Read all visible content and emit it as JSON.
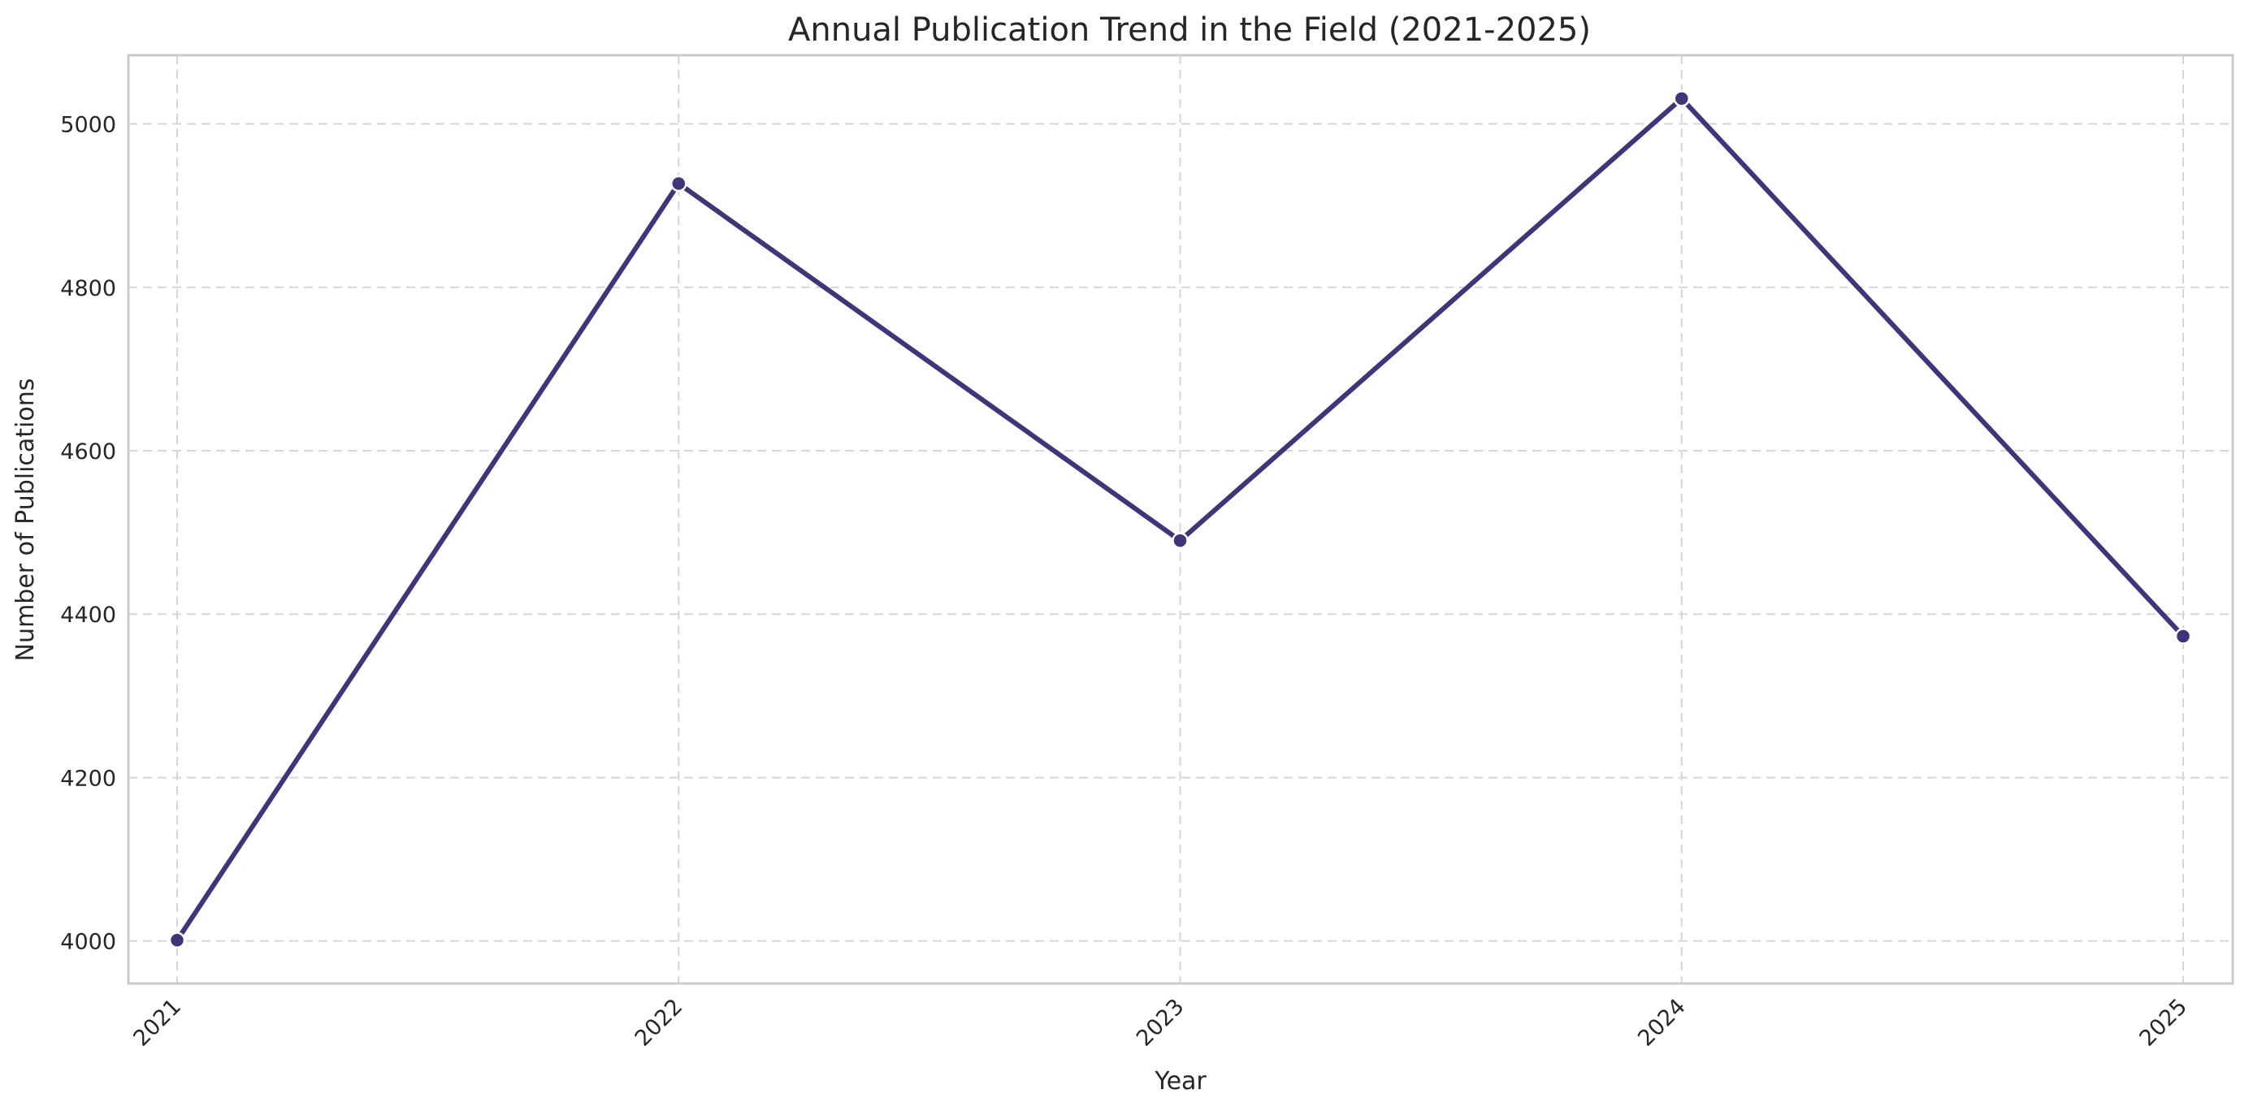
{
  "chart_data": {
    "type": "line",
    "title": "Annual Publication Trend in the Field (2021-2025)",
    "xlabel": "Year",
    "ylabel": "Number of Publications",
    "categories": [
      "2021",
      "2022",
      "2023",
      "2024",
      "2025"
    ],
    "series": [
      {
        "values": [
          4001,
          4927,
          4490,
          5031,
          4373
        ]
      }
    ],
    "yticks": [
      4000,
      4200,
      4400,
      4600,
      4800,
      5000
    ],
    "ylim": [
      3948,
      5084
    ],
    "grid": true,
    "legend": "none",
    "colors": {
      "line": "#413478",
      "marker": "#413478"
    }
  }
}
